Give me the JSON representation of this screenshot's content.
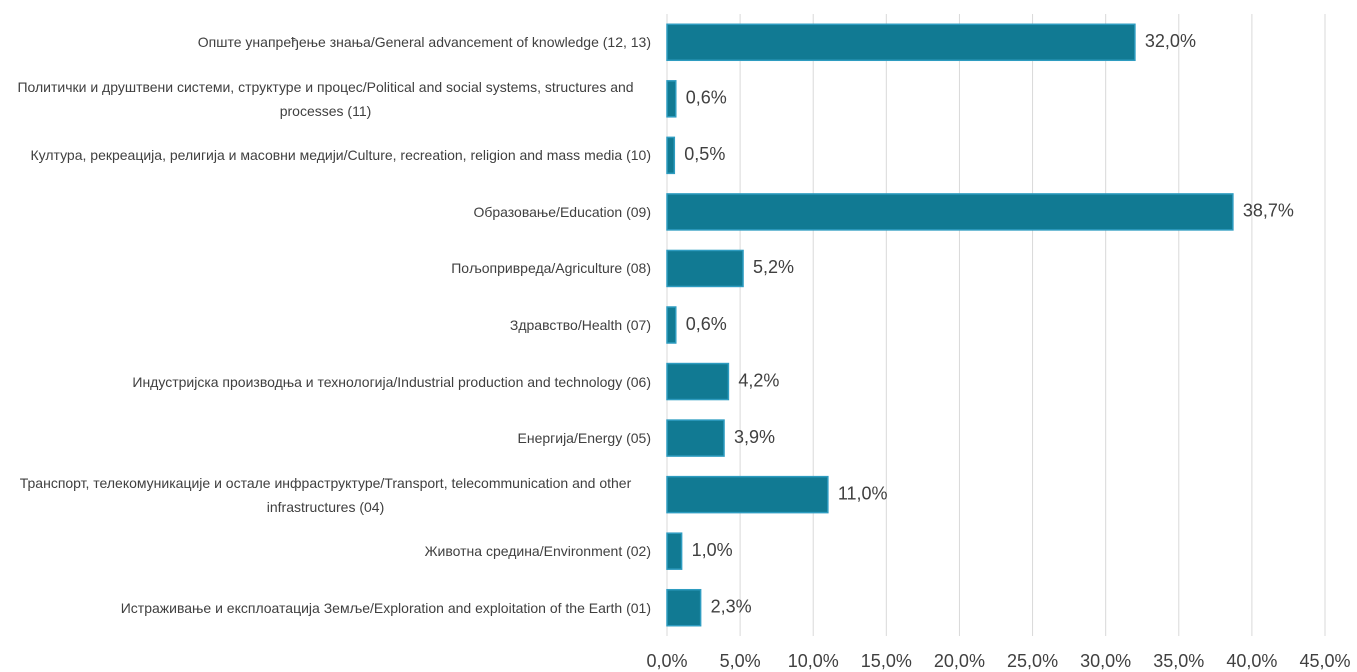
{
  "chart_data": {
    "type": "bar",
    "orientation": "horizontal",
    "categories": [
      "Опште унапређење знања/General advancement of knowledge (12, 13)",
      "Политички и друштвени системи, структуре и процес/Political and social systems, structures and processes (11)",
      "Култура, рекреација, религија и масовни медији/Culture, recreation, religion and mass media (10)",
      "Образовање/Education (09)",
      "Пољопривреда/Agriculture (08)",
      "Здравство/Health (07)",
      "Индустријска производња и технологија/Industrial production and technology (06)",
      "Енергија/Energy (05)",
      "Транспорт, телекомуникације и остале инфраструктуре/Transport, telecommunication and other infrastructures  (04)",
      "Животна средина/Environment (02)",
      "Истраживање и експлоатација Земље/Exploration and exploitation of the Earth (01)"
    ],
    "values": [
      32.0,
      0.6,
      0.5,
      38.7,
      5.2,
      0.6,
      4.2,
      3.9,
      11.0,
      1.0,
      2.3
    ],
    "value_labels": [
      "32,0%",
      "0,6%",
      "0,5%",
      "38,7%",
      "5,2%",
      "0,6%",
      "4,2%",
      "3,9%",
      "11,0%",
      "1,0%",
      "2,3%"
    ],
    "color": "#117a93",
    "edge_color": "#2e9cc0",
    "xlim": [
      0,
      45
    ],
    "xticks": [
      {
        "value": 0,
        "label": "0,0%"
      },
      {
        "value": 5,
        "label": "5,0%"
      },
      {
        "value": 10,
        "label": "10,0%"
      },
      {
        "value": 15,
        "label": "15,0%"
      },
      {
        "value": 20,
        "label": "20,0%"
      },
      {
        "value": 25,
        "label": "25,0%"
      },
      {
        "value": 30,
        "label": "30,0%"
      },
      {
        "value": 35,
        "label": "35,0%"
      },
      {
        "value": 40,
        "label": "40,0%"
      },
      {
        "value": 45,
        "label": "45,0%"
      }
    ],
    "grid": true
  }
}
